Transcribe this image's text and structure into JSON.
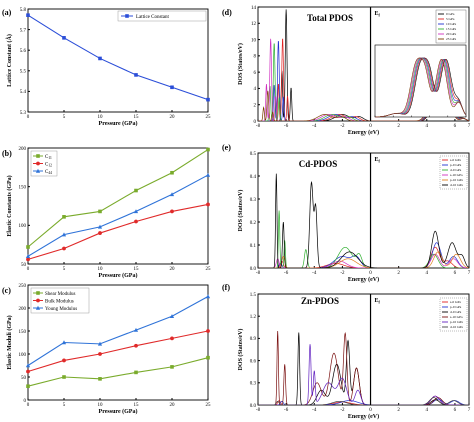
{
  "chart_data": [
    {
      "id": "a",
      "type": "line",
      "panel_label": "(a)",
      "x": [
        0,
        5,
        10,
        15,
        20,
        25
      ],
      "series": [
        {
          "name": "Lattice Constant",
          "values": [
            5.77,
            5.66,
            5.56,
            5.48,
            5.42,
            5.36
          ],
          "color": "#2b4ed8",
          "marker": "square"
        }
      ],
      "xlabel": "Pressure (GPa)",
      "ylabel": "Lattice Constant (Å)",
      "xlim": [
        0,
        25
      ],
      "ylim": [
        5.3,
        5.8
      ],
      "xticks": [
        "0",
        "5",
        "10",
        "15",
        "20",
        "25"
      ],
      "yticks": [
        "5.3",
        "5.4",
        "5.5",
        "5.6",
        "5.7",
        "5.8"
      ],
      "legend_position": "top-right"
    },
    {
      "id": "b",
      "type": "line",
      "panel_label": "(b)",
      "x": [
        0,
        5,
        10,
        15,
        20,
        25
      ],
      "series": [
        {
          "name": "C11",
          "name_main": "C",
          "name_sub": "11",
          "values": [
            72,
            111,
            118,
            145,
            168,
            198
          ],
          "color": "#7aab2c",
          "marker": "square"
        },
        {
          "name": "C12",
          "name_main": "C",
          "name_sub": "12",
          "values": [
            56,
            70,
            90,
            105,
            118,
            127
          ],
          "color": "#e02a2a",
          "marker": "circle"
        },
        {
          "name": "C44",
          "name_main": "C",
          "name_sub": "44",
          "values": [
            60,
            88,
            98,
            118,
            140,
            165
          ],
          "color": "#2f73d8",
          "marker": "triangle"
        }
      ],
      "xlabel": "Pressure (GPa)",
      "ylabel": "Elastic Constants (GPa)",
      "xlim": [
        0,
        25
      ],
      "ylim": [
        50,
        200
      ],
      "xticks": [
        "0",
        "5",
        "10",
        "15",
        "20",
        "25"
      ],
      "yticks": [
        "50",
        "100",
        "150",
        "200"
      ],
      "legend_position": "top-left"
    },
    {
      "id": "c",
      "type": "line",
      "panel_label": "(c)",
      "x": [
        0,
        5,
        10,
        15,
        20,
        25
      ],
      "series": [
        {
          "name": "Shear Modulus",
          "values": [
            30,
            50,
            46,
            60,
            72,
            92
          ],
          "color": "#7aab2c",
          "marker": "square"
        },
        {
          "name": "Bulk Modulus",
          "values": [
            62,
            86,
            100,
            118,
            134,
            150
          ],
          "color": "#e02a2a",
          "marker": "circle"
        },
        {
          "name": "Young Modulus",
          "values": [
            75,
            125,
            122,
            152,
            182,
            225
          ],
          "color": "#2f73d8",
          "marker": "triangle"
        }
      ],
      "xlabel": "Pressure (GPa)",
      "ylabel": "Elastic Moduli (GPa)",
      "xlim": [
        0,
        25
      ],
      "ylim": [
        0,
        250
      ],
      "xticks": [
        "0",
        "5",
        "10",
        "15",
        "20",
        "25"
      ],
      "yticks": [
        "0",
        "50",
        "100",
        "150",
        "200",
        "250"
      ],
      "legend_position": "top-left"
    },
    {
      "id": "d",
      "type": "line",
      "panel_label": "(d)",
      "title": "Total PDOS",
      "fermi_label": "E",
      "fermi_sub": "f",
      "xlabel": "Energy (eV)",
      "ylabel": "DOS (States/eV)",
      "xlim": [
        -8,
        7
      ],
      "ylim": [
        0,
        14
      ],
      "xticks": [
        "-8",
        "-6",
        "-4",
        "-2",
        "0",
        "2",
        "4",
        "6",
        "7"
      ],
      "yticks": [
        "0",
        "2",
        "4",
        "6",
        "8",
        "10",
        "12",
        "14"
      ],
      "series": [
        {
          "name": "0 GPa",
          "color": "#000000"
        },
        {
          "name": "5 GPa",
          "color": "#e02020"
        },
        {
          "name": "10 GPa",
          "color": "#2030d0"
        },
        {
          "name": "15 GPa",
          "color": "#30b030"
        },
        {
          "name": "20 GPa",
          "color": "#d030c0"
        },
        {
          "name": "25 GPa",
          "color": "#7a3a00"
        }
      ],
      "peaks": [
        {
          "series": "0 GPa",
          "x": -6.0,
          "y": 13.7
        },
        {
          "series": "5 GPa",
          "x": -6.25,
          "y": 10.2
        },
        {
          "series": "10 GPa",
          "x": -6.55,
          "y": 9.9
        },
        {
          "series": "15 GPa",
          "x": -6.85,
          "y": 9.6
        },
        {
          "series": "20 GPa",
          "x": -7.1,
          "y": 10.1
        },
        {
          "series": "25 GPa",
          "x": -7.3,
          "y": 3.7
        }
      ],
      "inset": {
        "xlim": [
          2,
          7
        ],
        "ylim": [
          0,
          3
        ]
      },
      "legend_position": "top-right"
    },
    {
      "id": "e",
      "type": "line",
      "panel_label": "(e)",
      "title": "Cd-PDOS",
      "fermi_label": "E",
      "fermi_sub": "f",
      "xlabel": "Energy (eV)",
      "ylabel": "DOS (States/eV)",
      "xlim": [
        -8,
        7
      ],
      "ylim": [
        0,
        0.5
      ],
      "xticks": [
        "-8",
        "-6",
        "-4",
        "-2",
        "0",
        "2",
        "4",
        "6",
        "7"
      ],
      "yticks": [
        "0.0",
        "0.1",
        "0.2",
        "0.3",
        "0.4",
        "0.5"
      ],
      "series": [
        {
          "name": "s-0 GPa",
          "color": "#e02020"
        },
        {
          "name": "p-0 GPa",
          "color": "#2030d0"
        },
        {
          "name": "d-0 GPa",
          "color": "#30b030"
        },
        {
          "name": "s-10 GPa",
          "color": "#d030c0"
        },
        {
          "name": "p-10 GPa",
          "color": "#e08020"
        },
        {
          "name": "d-10 GPa",
          "color": "#000000"
        }
      ],
      "legend_position": "top-right"
    },
    {
      "id": "f",
      "type": "line",
      "panel_label": "(f)",
      "title": "Zn-PDOS",
      "fermi_label": "E",
      "fermi_sub": "f",
      "xlabel": "Energy (eV)",
      "ylabel": "DOS (States/eV)",
      "xlim": [
        -8,
        7
      ],
      "ylim": [
        0,
        1.5
      ],
      "xticks": [
        "-8",
        "-6",
        "-4",
        "-2",
        "0",
        "2",
        "4",
        "6",
        "7"
      ],
      "yticks": [
        "0.0",
        "0.3",
        "0.6",
        "0.9",
        "1.2",
        "1.5"
      ],
      "series": [
        {
          "name": "s-0 GPa",
          "color": "#e02020"
        },
        {
          "name": "p-0 GPa",
          "color": "#2030d0"
        },
        {
          "name": "d-0 GPa",
          "color": "#000000"
        },
        {
          "name": "s-10 GPa",
          "color": "#7a1010"
        },
        {
          "name": "p-10 GPa",
          "color": "#6020c0"
        },
        {
          "name": "d-10 GPa",
          "color": "#404040"
        }
      ],
      "legend_position": "top-right"
    }
  ]
}
